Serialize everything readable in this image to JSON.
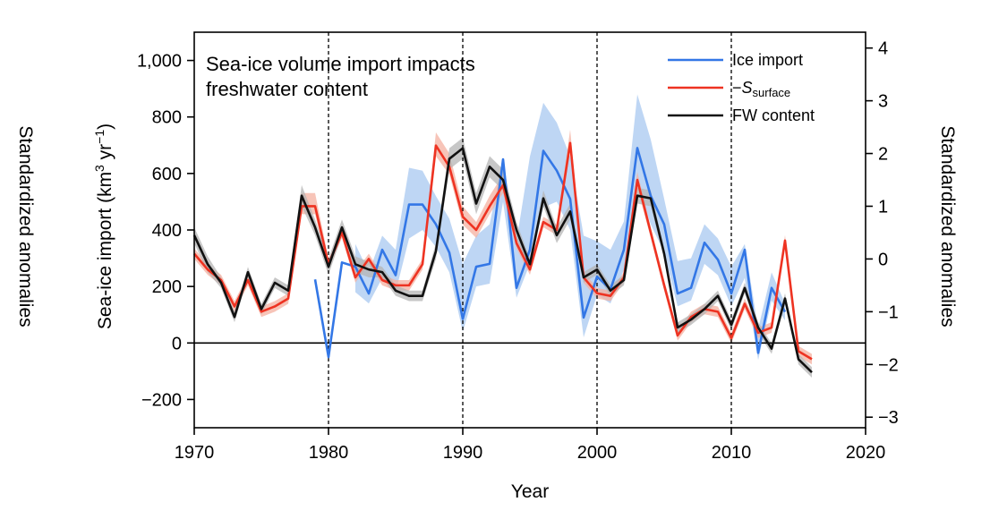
{
  "chart_data": {
    "type": "line",
    "title": "Sea-ice volume import impacts freshwater content",
    "xlabel": "Year",
    "ylabel_left": "Sea-ice import (km3 yr−1)",
    "ylabel_right": "Standardized anomalies",
    "ylabel_far_left": "Standardized anomalies",
    "xlim": [
      1970,
      2020
    ],
    "ylim_left": [
      -300,
      1100
    ],
    "ylim_right": [
      -3.2,
      4.3
    ],
    "x_ticks": [
      "1970",
      "1980",
      "1990",
      "2000",
      "2010",
      "2020"
    ],
    "y_ticks_left": [
      "−200",
      "0",
      "200",
      "400",
      "600",
      "800",
      "1,000"
    ],
    "y_ticks_right": [
      "−3",
      "−2",
      "−1",
      "0",
      "1",
      "2",
      "3",
      "4"
    ],
    "vlines": [
      1980,
      1990,
      2000,
      2010
    ],
    "hline_left": 0,
    "legend_position": "top-right",
    "series": [
      {
        "name": "Ice import",
        "name_sub": "",
        "color": "#3377e6",
        "band_color": "#a8c8f0",
        "axis": "left",
        "x": [
          1979,
          1980,
          1981,
          1982,
          1983,
          1984,
          1985,
          1986,
          1987,
          1988,
          1989,
          1990,
          1991,
          1992,
          1993,
          1994,
          1995,
          1996,
          1997,
          1998,
          1999,
          2000,
          2001,
          2002,
          2003,
          2004,
          2005,
          2006,
          2007,
          2008,
          2009,
          2010,
          2011,
          2012,
          2013,
          2014
        ],
        "y": [
          225,
          -50,
          285,
          270,
          175,
          330,
          240,
          490,
          490,
          420,
          320,
          85,
          270,
          280,
          650,
          195,
          330,
          680,
          610,
          510,
          90,
          235,
          190,
          330,
          690,
          520,
          420,
          175,
          195,
          355,
          295,
          175,
          330,
          -35,
          195,
          110
        ],
        "lo": [
          null,
          null,
          null,
          180,
          140,
          230,
          180,
          370,
          400,
          340,
          250,
          40,
          200,
          210,
          500,
          160,
          280,
          480,
          500,
          400,
          20,
          170,
          140,
          260,
          560,
          420,
          320,
          130,
          150,
          280,
          240,
          130,
          230,
          -60,
          150,
          80
        ],
        "hi": [
          null,
          null,
          null,
          350,
          250,
          380,
          330,
          620,
          610,
          520,
          440,
          280,
          380,
          420,
          650,
          360,
          660,
          850,
          780,
          660,
          380,
          360,
          330,
          430,
          880,
          720,
          510,
          290,
          300,
          420,
          370,
          270,
          350,
          50,
          250,
          140
        ]
      },
      {
        "name": "−S",
        "name_sub": "surface",
        "color": "#ee3322",
        "band_color": "#f4b0a0",
        "axis": "right",
        "x": [
          1970,
          1971,
          1972,
          1973,
          1974,
          1975,
          1976,
          1977,
          1978,
          1979,
          1980,
          1981,
          1982,
          1983,
          1984,
          1985,
          1986,
          1987,
          1988,
          1989,
          1990,
          1991,
          1992,
          1993,
          1994,
          1995,
          1996,
          1997,
          1998,
          1999,
          2000,
          2001,
          2002,
          2003,
          2004,
          2005,
          2006,
          2007,
          2008,
          2009,
          2010,
          2011,
          2012,
          2013,
          2014,
          2015,
          2016
        ],
        "y": [
          0.1,
          -0.2,
          -0.4,
          -0.9,
          -0.4,
          -1.0,
          -0.9,
          -0.75,
          1.0,
          1.0,
          -0.1,
          0.5,
          -0.35,
          0.0,
          -0.4,
          -0.5,
          -0.5,
          -0.1,
          2.15,
          1.75,
          0.8,
          0.55,
          1.0,
          1.4,
          0.3,
          -0.2,
          0.7,
          0.55,
          2.2,
          -0.35,
          -0.65,
          -0.7,
          -0.35,
          1.5,
          0.5,
          -0.5,
          -1.45,
          -1.1,
          -0.95,
          -1.0,
          -1.5,
          -0.85,
          -1.4,
          -1.3,
          0.35,
          -1.75,
          -1.9
        ],
        "lo": [
          0.0,
          -0.3,
          -0.5,
          -1.0,
          -0.5,
          -1.1,
          -1.0,
          -0.85,
          0.85,
          0.85,
          -0.2,
          0.4,
          -0.45,
          -0.1,
          -0.5,
          -0.6,
          -0.6,
          -0.2,
          1.95,
          1.6,
          0.65,
          0.4,
          0.85,
          1.25,
          0.2,
          -0.3,
          0.6,
          0.45,
          2.05,
          -0.45,
          -0.75,
          -0.8,
          -0.45,
          1.35,
          0.4,
          -0.6,
          -1.55,
          -1.2,
          -1.05,
          -1.1,
          -1.6,
          -0.95,
          -1.5,
          -1.4,
          0.25,
          -1.85,
          -2.0
        ],
        "hi": [
          0.2,
          -0.1,
          -0.3,
          -0.8,
          -0.3,
          -0.9,
          -0.8,
          -0.65,
          1.25,
          1.25,
          0.0,
          0.6,
          -0.25,
          0.1,
          -0.3,
          -0.4,
          -0.4,
          0.0,
          2.4,
          2.0,
          1.0,
          0.7,
          1.2,
          1.6,
          0.4,
          -0.1,
          0.8,
          0.65,
          2.45,
          -0.25,
          -0.55,
          -0.6,
          -0.25,
          1.65,
          0.6,
          -0.4,
          -1.35,
          -1.0,
          -0.85,
          -0.9,
          -1.4,
          -0.75,
          -1.3,
          -1.2,
          0.45,
          -1.65,
          -1.8
        ]
      },
      {
        "name": "FW content",
        "name_sub": "",
        "color": "#111111",
        "band_color": "#b4b4b4",
        "axis": "right",
        "x": [
          1970,
          1971,
          1972,
          1973,
          1974,
          1975,
          1976,
          1977,
          1978,
          1979,
          1980,
          1981,
          1982,
          1983,
          1984,
          1985,
          1986,
          1987,
          1988,
          1989,
          1990,
          1991,
          1992,
          1993,
          1994,
          1995,
          1996,
          1997,
          1998,
          1999,
          2000,
          2001,
          2002,
          2003,
          2004,
          2005,
          2006,
          2007,
          2008,
          2009,
          2010,
          2011,
          2012,
          2013,
          2014,
          2015,
          2016
        ],
        "y": [
          0.45,
          -0.1,
          -0.45,
          -1.1,
          -0.25,
          -0.95,
          -0.45,
          -0.6,
          1.2,
          0.6,
          -0.15,
          0.6,
          -0.1,
          -0.2,
          -0.25,
          -0.6,
          -0.7,
          -0.7,
          0.15,
          1.9,
          2.1,
          1.05,
          1.75,
          1.5,
          0.55,
          -0.1,
          1.15,
          0.45,
          0.9,
          -0.35,
          -0.2,
          -0.6,
          -0.4,
          1.2,
          1.15,
          0.1,
          -1.3,
          -1.15,
          -0.95,
          -0.7,
          -1.25,
          -0.55,
          -1.3,
          -1.7,
          -0.75,
          -1.9,
          -2.15
        ],
        "lo": [
          0.3,
          -0.25,
          -0.55,
          -1.2,
          -0.35,
          -1.05,
          -0.55,
          -0.7,
          1.0,
          0.45,
          -0.3,
          0.45,
          -0.25,
          -0.35,
          -0.35,
          -0.7,
          -0.8,
          -0.8,
          0.0,
          1.7,
          1.9,
          0.85,
          1.55,
          1.3,
          0.4,
          -0.2,
          1.0,
          0.3,
          0.75,
          -0.45,
          -0.3,
          -0.7,
          -0.5,
          1.05,
          1.0,
          0.0,
          -1.4,
          -1.25,
          -1.05,
          -0.8,
          -1.35,
          -0.65,
          -1.4,
          -1.8,
          -0.85,
          -2.0,
          -2.25
        ],
        "hi": [
          0.6,
          0.05,
          -0.35,
          -1.0,
          -0.15,
          -0.85,
          -0.35,
          -0.5,
          1.4,
          0.75,
          0.0,
          0.75,
          0.05,
          -0.05,
          -0.15,
          -0.5,
          -0.6,
          -0.6,
          0.3,
          2.1,
          2.3,
          1.25,
          1.95,
          1.7,
          0.7,
          0.0,
          1.3,
          0.6,
          1.05,
          -0.25,
          -0.1,
          -0.5,
          -0.3,
          1.35,
          1.3,
          0.2,
          -1.2,
          -1.05,
          -0.85,
          -0.6,
          -1.15,
          -0.45,
          -1.2,
          -1.6,
          -0.65,
          -1.8,
          -2.05
        ]
      }
    ]
  }
}
